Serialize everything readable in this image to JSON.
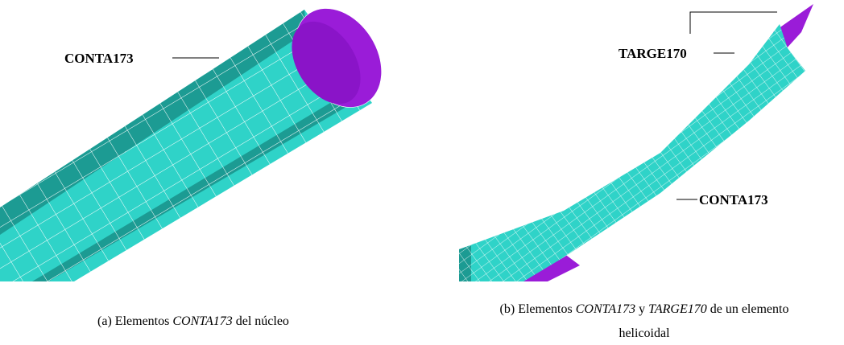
{
  "panels": [
    {
      "labels": [
        "CONTA173"
      ],
      "caption": [
        "(a) Elementos",
        "CONTA173",
        "del núcleo"
      ]
    },
    {
      "labels": [
        "TARGE170",
        "CONTA173"
      ],
      "caption": [
        "(b) Elementos",
        "CONTA173",
        "y",
        "TARGE170",
        "de un elemento",
        "helicoidal"
      ]
    }
  ]
}
